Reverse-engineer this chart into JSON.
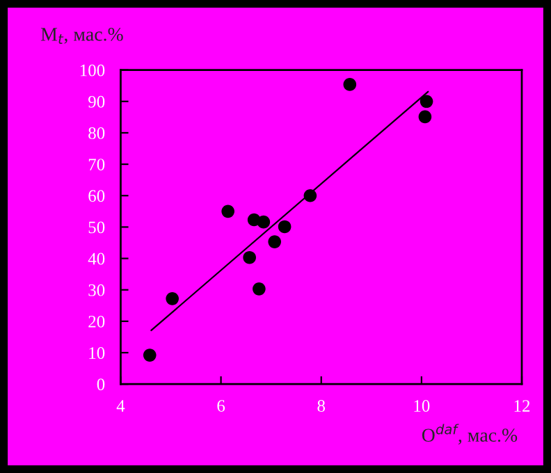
{
  "chart_data": {
    "type": "scatter",
    "xlabel": "O$^{daf}$, мас.%",
    "ylabel": "M$_{t}$, мас.%",
    "xlim": [
      4,
      12
    ],
    "xticks": [
      4,
      6,
      8,
      10,
      12
    ],
    "ylim": [
      0,
      100
    ],
    "yticks": [
      0,
      10,
      20,
      30,
      40,
      50,
      60,
      70,
      80,
      90,
      100
    ],
    "grid": false,
    "series": [
      {
        "color": "#000000",
        "marker": "circle",
        "x": [
          4.58,
          5.03,
          6.14,
          6.57,
          6.66,
          6.76,
          6.85,
          7.07,
          7.27,
          7.78,
          8.57,
          10.07,
          10.1
        ],
        "values": [
          9.2,
          27.2,
          55,
          40.3,
          52.3,
          30.3,
          51.6,
          45.3,
          50.1,
          60,
          95.4,
          85.1,
          90
        ]
      },
      {
        "type": "line",
        "color": "#000000",
        "x": [
          4.61,
          10.13
        ],
        "values": [
          17.1,
          93.1
        ]
      }
    ]
  }
}
